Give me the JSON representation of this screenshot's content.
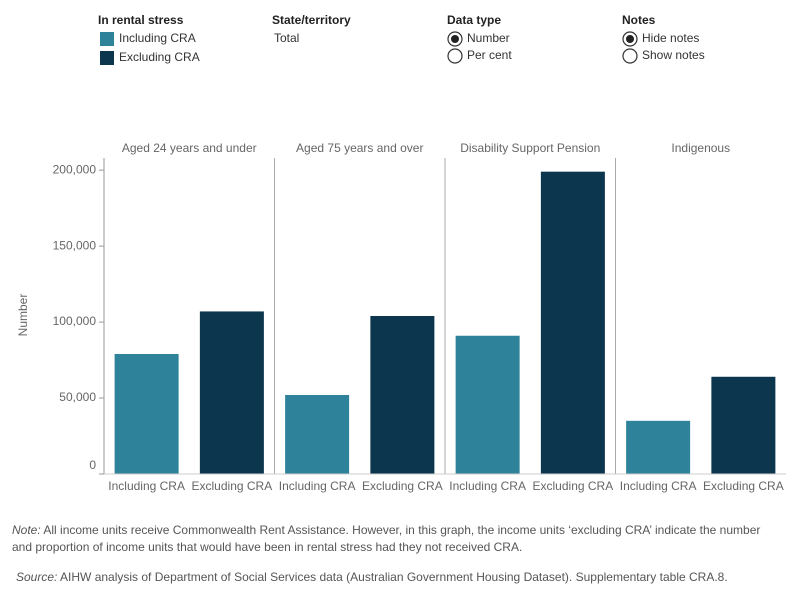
{
  "controls": {
    "legend_title": "In rental stress",
    "state": {
      "title": "State/territory",
      "value": "Total"
    },
    "data_type": {
      "title": "Data type",
      "options": [
        "Number",
        "Per cent"
      ],
      "selected": 0
    },
    "notes": {
      "title": "Notes",
      "options": [
        "Hide notes",
        "Show notes"
      ],
      "selected": 0
    }
  },
  "chart_data": {
    "type": "bar",
    "panels": [
      "Aged 24 years and under",
      "Aged 75 years and over",
      "Disability Support Pension",
      "Indigenous"
    ],
    "y_label": "Number",
    "series": [
      {
        "name": "Including CRA",
        "color": "#2e8299",
        "values": [
          79000,
          52000,
          91000,
          35000
        ]
      },
      {
        "name": "Excluding CRA",
        "color": "#0b364d",
        "values": [
          107000,
          104000,
          199000,
          64000
        ]
      }
    ],
    "ylim": [
      0,
      208000
    ],
    "yticks": [
      0,
      {
        "value": 50000,
        "label": "50,000"
      },
      {
        "value": 100000,
        "label": "100,000"
      },
      {
        "value": 150000,
        "label": "150,000"
      },
      {
        "value": 200000,
        "label": "200,000"
      }
    ]
  },
  "footer": {
    "note_label": "Note:",
    "note": "All income units receive Commonwealth Rent Assistance. However, in this graph, the income units ‘excluding CRA’ indicate the number and proportion of income units that would have been in rental stress had they not received CRA.",
    "source_label": "Source:",
    "source": "AIHW analysis of Department of Social Services data (Australian Government Housing Dataset). Supplementary table CRA.8."
  }
}
